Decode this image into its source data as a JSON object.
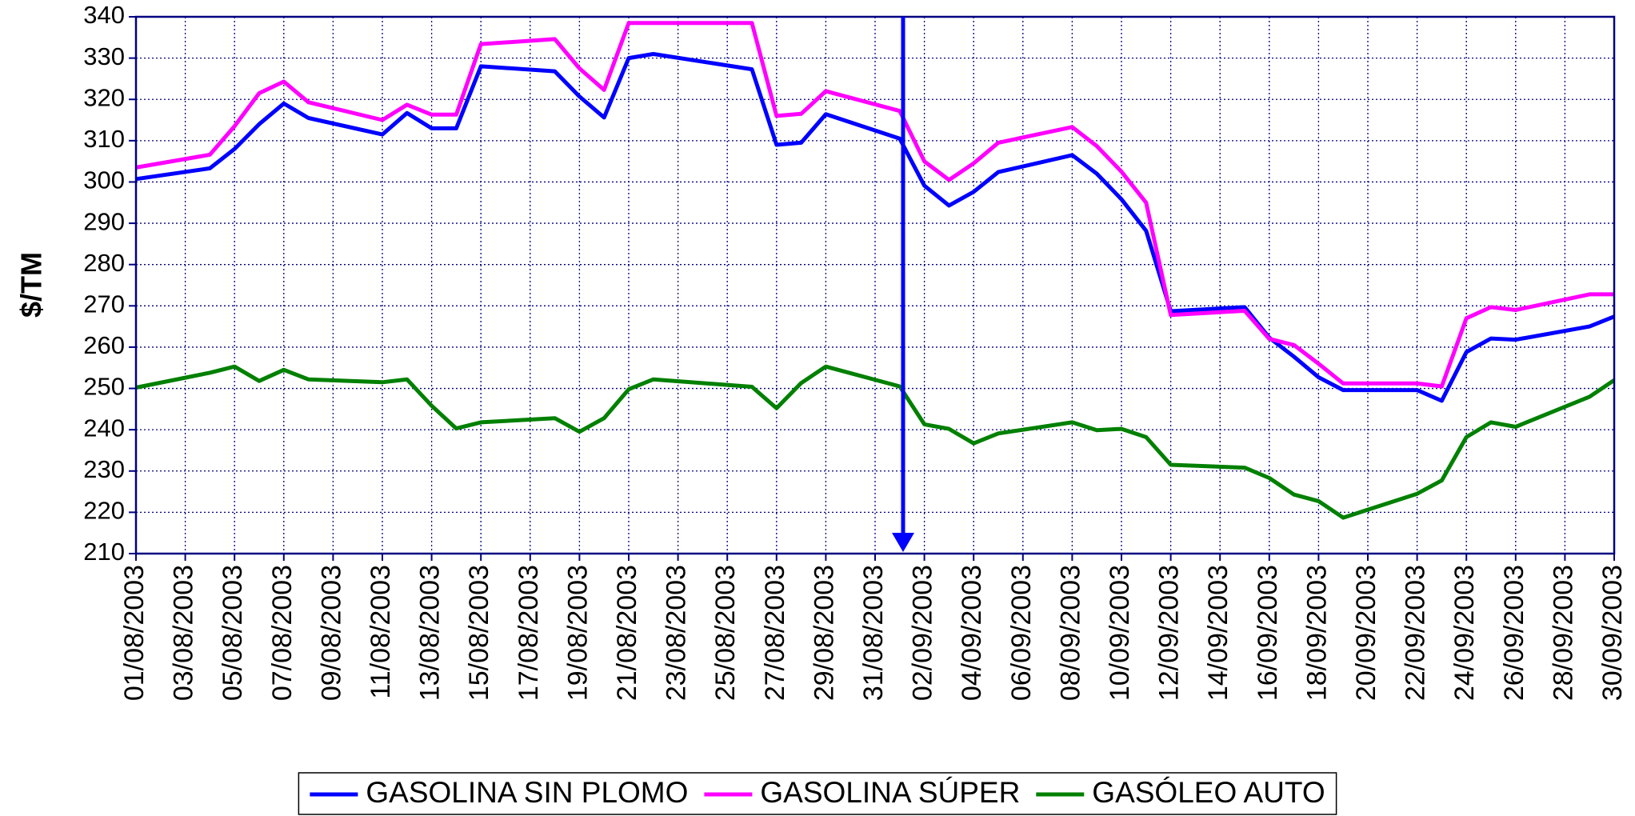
{
  "chart_data": {
    "type": "line",
    "y_label": "$/TM",
    "x": [
      "01/08/2003",
      "04/08/2003",
      "05/08/2003",
      "06/08/2003",
      "07/08/2003",
      "08/08/2003",
      "11/08/2003",
      "12/08/2003",
      "13/08/2003",
      "14/08/2003",
      "15/08/2003",
      "18/08/2003",
      "19/08/2003",
      "20/08/2003",
      "21/08/2003",
      "22/08/2003",
      "26/08/2003",
      "27/08/2003",
      "28/08/2003",
      "29/08/2003",
      "01/09/2003",
      "02/09/2003",
      "03/09/2003",
      "04/09/2003",
      "05/09/2003",
      "08/09/2003",
      "09/09/2003",
      "10/09/2003",
      "11/09/2003",
      "12/09/2003",
      "15/09/2003",
      "16/09/2003",
      "17/09/2003",
      "18/09/2003",
      "19/09/2003",
      "22/09/2003",
      "23/09/2003",
      "24/09/2003",
      "25/09/2003",
      "26/09/2003",
      "29/09/2003",
      "30/09/2003"
    ],
    "series": [
      {
        "name": "GASOLINA SIN PLOMO",
        "color": "#0000ff",
        "values": [
          300.7,
          303.3,
          308,
          314,
          319,
          315.5,
          311.5,
          316.7,
          313,
          313,
          328,
          326.8,
          320.7,
          315.6,
          330,
          331,
          327.3,
          309,
          309.5,
          316.4,
          310.5,
          299.1,
          294.3,
          297.6,
          302.4,
          306.5,
          302,
          295.8,
          288.2,
          268.7,
          269.7,
          262.3,
          257.7,
          252.7,
          249.6,
          249.6,
          247,
          258.8,
          262.1,
          261.8,
          265,
          267.4
        ]
      },
      {
        "name": "GASOLINA SÚPER",
        "color": "#ff00ff",
        "values": [
          303.5,
          306.6,
          313.5,
          321.5,
          324.3,
          319.3,
          315,
          318.7,
          316.3,
          316.3,
          333.4,
          334.6,
          327.5,
          322.3,
          338.5,
          338.5,
          338.5,
          316,
          316.5,
          322,
          317.2,
          305,
          300.5,
          304.5,
          309.5,
          313.3,
          308.7,
          302.5,
          295,
          267.8,
          268.8,
          262,
          260.5,
          256,
          251.2,
          251.2,
          250.5,
          267,
          269.7,
          269,
          272.8,
          272.8
        ]
      },
      {
        "name": "GASÓLEO AUTO",
        "color": "#008000",
        "values": [
          250.2,
          253.8,
          255.3,
          251.8,
          254.5,
          252.2,
          251.5,
          252.2,
          245.8,
          240.3,
          241.8,
          242.8,
          239.5,
          242.8,
          249.8,
          252.2,
          250.4,
          245.2,
          251.3,
          255.3,
          250.5,
          241.3,
          240.2,
          236.7,
          239.1,
          241.8,
          239.9,
          240.2,
          238.2,
          231.5,
          230.8,
          228.3,
          224.3,
          222.7,
          218.7,
          224.5,
          227.7,
          238.2,
          241.8,
          240.7,
          248,
          252
        ]
      }
    ],
    "xlim": [
      "01/08/2003",
      "30/09/2003"
    ],
    "xticks": [
      "01/08/2003",
      "03/08/2003",
      "05/08/2003",
      "07/08/2003",
      "09/08/2003",
      "11/08/2003",
      "13/08/2003",
      "15/08/2003",
      "17/08/2003",
      "19/08/2003",
      "21/08/2003",
      "23/08/2003",
      "25/08/2003",
      "27/08/2003",
      "29/08/2003",
      "31/08/2003",
      "02/09/2003",
      "04/09/2003",
      "06/09/2003",
      "08/09/2003",
      "10/09/2003",
      "12/09/2003",
      "14/09/2003",
      "16/09/2003",
      "18/09/2003",
      "20/09/2003",
      "22/09/2003",
      "24/09/2003",
      "26/09/2003",
      "28/09/2003",
      "30/09/2003"
    ],
    "ylim": [
      210,
      340
    ],
    "yticks": [
      210,
      220,
      230,
      240,
      250,
      260,
      270,
      280,
      290,
      300,
      310,
      320,
      330,
      340
    ],
    "grid": true,
    "legend": "bottom"
  }
}
